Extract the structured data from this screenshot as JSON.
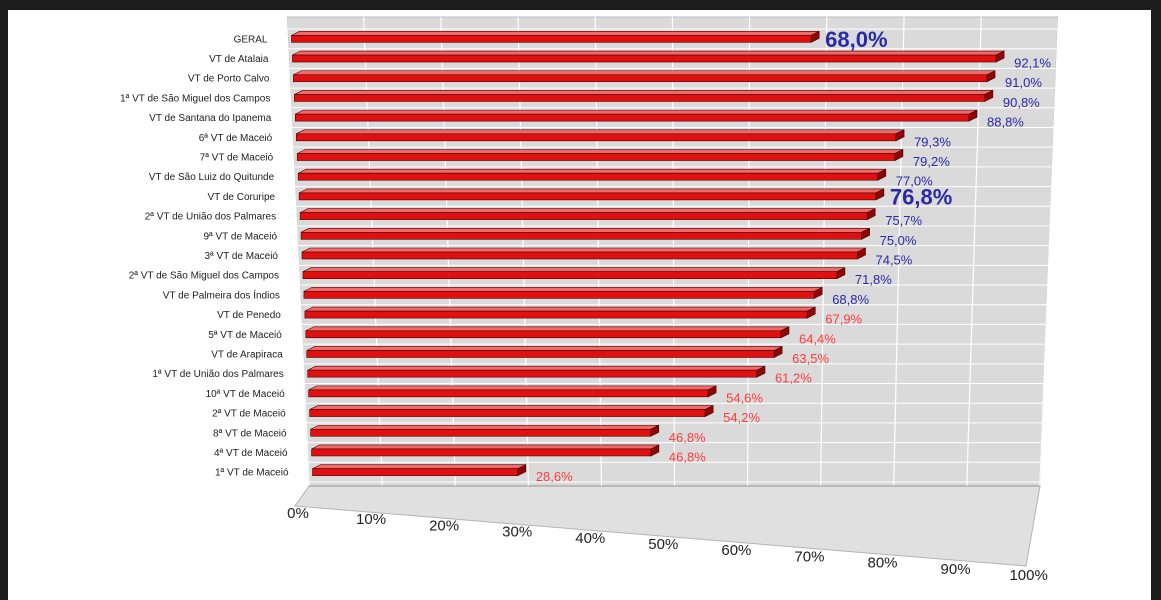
{
  "chart_data": {
    "type": "bar",
    "orientation": "horizontal",
    "style": "3d",
    "categories": [
      "GERAL",
      "VT de Atalaia",
      "VT de Porto Calvo",
      "1ª VT de São Miguel dos Campos",
      "VT de Santana do Ipanema",
      "6ª VT de Maceió",
      "7ª VT de Maceió",
      "VT de São Luiz do Quitunde",
      "VT de Coruripe",
      "2ª VT de União dos Palmares",
      "9ª VT de Maceió",
      "3ª VT de Maceió",
      "2ª VT de São Miguel dos Campos",
      "VT de Palmeira dos Índios",
      "VT de Penedo",
      "5ª VT de Maceió",
      "VT de Arapiraca",
      "1ª VT de União dos Palmares",
      "10ª VT de Maceió",
      "2ª VT de Maceió",
      "8ª VT de Maceió",
      "4ª VT de Maceió",
      "1ª VT de Maceió"
    ],
    "values": [
      68.0,
      92.1,
      91.0,
      90.8,
      88.8,
      79.3,
      79.2,
      77.0,
      76.8,
      75.7,
      75.0,
      74.5,
      71.8,
      68.8,
      67.9,
      64.4,
      63.5,
      61.2,
      54.6,
      54.2,
      46.8,
      46.8,
      28.6
    ],
    "value_labels": [
      "68,0%",
      "92,1%",
      "91,0%",
      "90,8%",
      "88,8%",
      "79,3%",
      "79,2%",
      "77,0%",
      "76,8%",
      "75,7%",
      "75,0%",
      "74,5%",
      "71,8%",
      "68,8%",
      "67,9%",
      "64,4%",
      "63,5%",
      "61,2%",
      "54,6%",
      "54,2%",
      "46,8%",
      "46,8%",
      "28,6%"
    ],
    "highlighted_labels": [
      "68,0%",
      "76,8%"
    ],
    "x_ticks": [
      "0%",
      "10%",
      "20%",
      "30%",
      "40%",
      "50%",
      "60%",
      "70%",
      "80%",
      "90%",
      "100%"
    ],
    "xlim": [
      0,
      100
    ],
    "grid": true,
    "legend": "none",
    "colors": {
      "bar_front": "#e01010",
      "bar_top": "#f06a6a",
      "bar_end": "#8c0606",
      "bar_border": "#4a0000",
      "label_high": "#2a2aa8",
      "label_low": "#ff3b3b",
      "wall": "#dadada",
      "grid": "#ffffff",
      "floor": "#c8c8c8",
      "floor_edge": "#777777"
    }
  }
}
